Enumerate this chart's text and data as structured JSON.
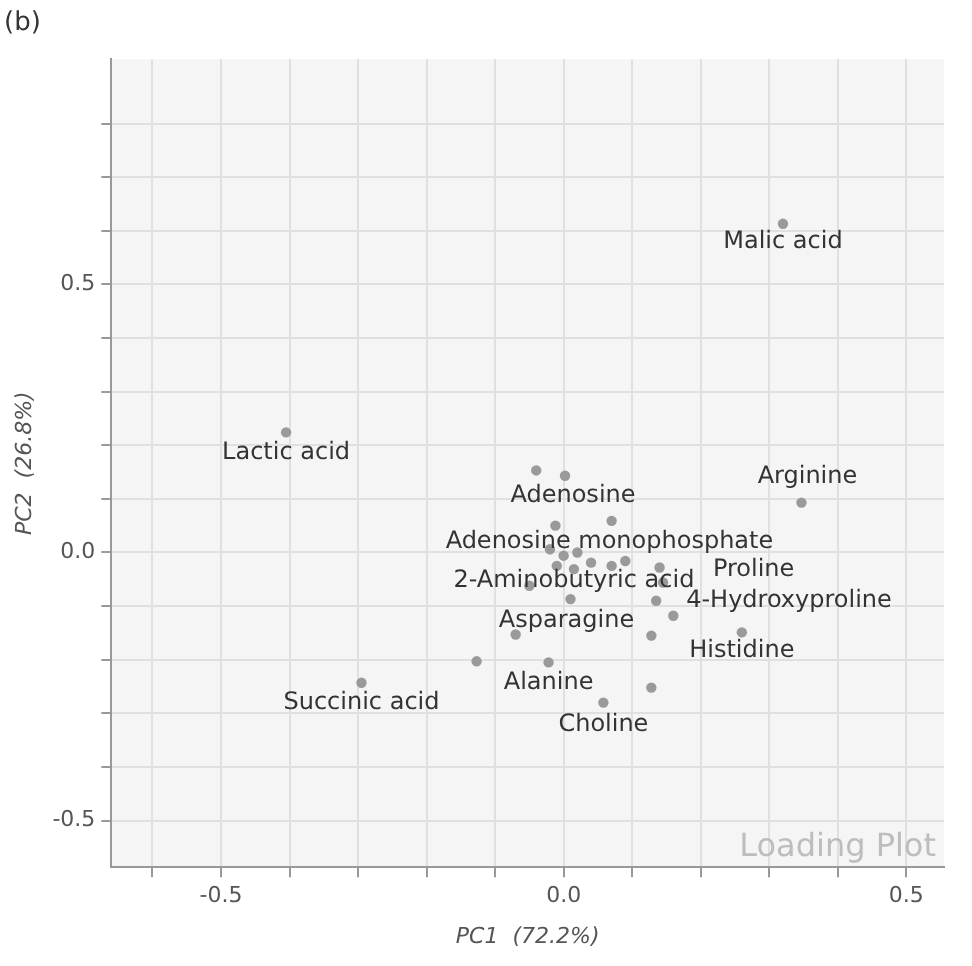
{
  "chart_data": {
    "type": "scatter",
    "title": "(b)",
    "xlabel": "PC1  (72.2%)",
    "ylabel": "PC2  (26.8%)",
    "x": [
      0.32,
      -0.405,
      -0.04,
      0.002,
      0.347,
      0.07,
      -0.012,
      -0.02,
      0,
      0.02,
      -0.01,
      0.015,
      0.04,
      0.07,
      0.09,
      0.14,
      0.145,
      -0.05,
      0.01,
      0.135,
      0.16,
      -0.07,
      0.128,
      0.26,
      -0.127,
      -0.022,
      0.128,
      0.058,
      -0.295
    ],
    "series": [
      {
        "color": "#9a9a9a",
        "values": [
          0.613,
          0.224,
          0.153,
          0.143,
          0.093,
          0.059,
          0.05,
          0.006,
          -0.006,
          0,
          -0.025,
          -0.031,
          -0.019,
          -0.025,
          -0.016,
          -0.028,
          -0.056,
          -0.062,
          -0.087,
          -0.09,
          -0.118,
          -0.153,
          -0.155,
          -0.149,
          -0.203,
          -0.205,
          -0.252,
          -0.28,
          -0.243
        ]
      }
    ],
    "xlim": [
      -0.66,
      0.555
    ],
    "ylim": [
      -0.587,
      0.92
    ],
    "xticks": [
      {
        "value": -0.6,
        "label": null
      },
      {
        "value": -0.5,
        "label": "-0.5"
      },
      {
        "value": -0.4,
        "label": null
      },
      {
        "value": -0.3,
        "label": null
      },
      {
        "value": -0.2,
        "label": null
      },
      {
        "value": -0.1,
        "label": null
      },
      {
        "value": 0,
        "label": "0.0"
      },
      {
        "value": 0.1,
        "label": null
      },
      {
        "value": 0.2,
        "label": null
      },
      {
        "value": 0.3,
        "label": null
      },
      {
        "value": 0.4,
        "label": null
      },
      {
        "value": 0.5,
        "label": "0.5"
      }
    ],
    "yticks": [
      {
        "value": -0.5,
        "label": "-0.5"
      },
      {
        "value": -0.4,
        "label": null
      },
      {
        "value": -0.3,
        "label": null
      },
      {
        "value": -0.2,
        "label": null
      },
      {
        "value": -0.1,
        "label": null
      },
      {
        "value": 0,
        "label": "0.0"
      },
      {
        "value": 0.1,
        "label": null
      },
      {
        "value": 0.2,
        "label": null
      },
      {
        "value": 0.3,
        "label": null
      },
      {
        "value": 0.4,
        "label": null
      },
      {
        "value": 0.5,
        "label": "0.5"
      },
      {
        "value": 0.6,
        "label": null
      },
      {
        "value": 0.7,
        "label": null
      },
      {
        "value": 0.8,
        "label": null
      }
    ],
    "grid": true,
    "legend": false,
    "marker": "circle",
    "annotations": [
      {
        "text": "Malic acid",
        "x": 0.32,
        "y": 0.613
      },
      {
        "text": "Lactic acid",
        "x": -0.405,
        "y": 0.224
      },
      {
        "text": "Adenosine",
        "x": 0.002,
        "y": 0.143
      },
      {
        "text": "Arginine",
        "x": 0.347,
        "y": 0.093
      },
      {
        "text": "Adenosine monophosphate",
        "x": -0.012,
        "y": 0.05
      },
      {
        "text": "Proline",
        "x": 0.14,
        "y": -0.028
      },
      {
        "text": "2-Aminobutyric acid",
        "x": 0.015,
        "y": -0.031
      },
      {
        "text": "4-Hydroxyproline",
        "x": 0.145,
        "y": -0.056
      },
      {
        "text": "Asparagine",
        "x": 0.01,
        "y": -0.087
      },
      {
        "text": "Histidine",
        "x": 0.26,
        "y": -0.149
      },
      {
        "text": "Alanine",
        "x": -0.022,
        "y": -0.205
      },
      {
        "text": "Succinic acid",
        "x": -0.295,
        "y": -0.243
      },
      {
        "text": "Choline",
        "x": 0.058,
        "y": -0.28
      },
      "Loading Plot"
    ]
  }
}
